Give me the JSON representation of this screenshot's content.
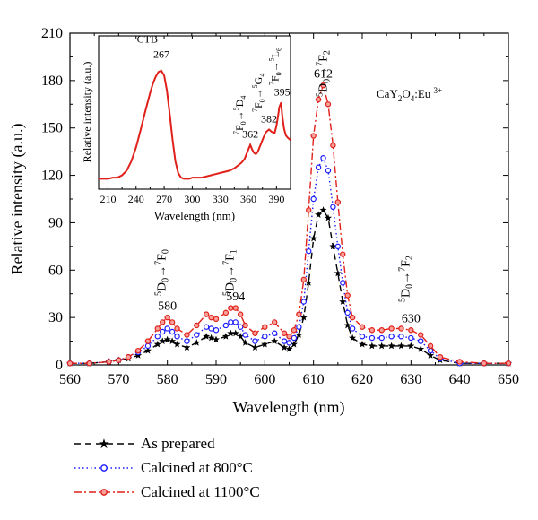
{
  "chart_data": [
    {
      "type": "line",
      "title": "",
      "xlabel": "Wavelength (nm)",
      "ylabel": "Relative intensity (a.u.)",
      "xlim": [
        560,
        650
      ],
      "ylim": [
        0,
        210
      ],
      "x_ticks": [
        560,
        570,
        580,
        590,
        600,
        610,
        620,
        630,
        640,
        650
      ],
      "y_ticks": [
        0,
        30,
        60,
        90,
        120,
        150,
        180,
        210
      ],
      "grid": false,
      "legend_position": "bottom",
      "compound_label": "CaY2O4:Eu3+",
      "series": [
        {
          "name": "As prepared",
          "color": "#000000",
          "marker": "star",
          "x": [
            560,
            564,
            568,
            570,
            572,
            574,
            576,
            578,
            579,
            580,
            581,
            582,
            584,
            586,
            588,
            589,
            590,
            592,
            593,
            594,
            595,
            596,
            598,
            600,
            602,
            604,
            605,
            606,
            607,
            608,
            609,
            610,
            611,
            612,
            613,
            614,
            615,
            616,
            617,
            618,
            620,
            622,
            624,
            626,
            628,
            630,
            632,
            634,
            636,
            640,
            645,
            650
          ],
          "values": [
            1,
            1,
            2,
            3,
            4,
            6,
            9,
            13,
            15,
            16,
            15,
            13,
            11,
            14,
            18,
            17,
            16,
            18,
            20,
            20,
            18,
            14,
            11,
            13,
            15,
            11,
            10,
            13,
            19,
            30,
            52,
            80,
            95,
            98,
            93,
            75,
            58,
            40,
            25,
            17,
            13,
            12,
            12,
            12,
            12,
            12,
            10,
            6,
            3,
            1,
            1,
            1
          ]
        },
        {
          "name": "Calcined at 800°C",
          "color": "#1a1aff",
          "marker": "circle",
          "x": [
            560,
            564,
            568,
            570,
            572,
            574,
            576,
            578,
            579,
            580,
            581,
            582,
            584,
            586,
            588,
            589,
            590,
            592,
            593,
            594,
            595,
            596,
            598,
            600,
            602,
            604,
            605,
            606,
            607,
            608,
            609,
            610,
            611,
            612,
            613,
            614,
            615,
            616,
            617,
            618,
            620,
            622,
            624,
            626,
            628,
            630,
            632,
            634,
            636,
            640,
            645,
            650
          ],
          "values": [
            1,
            1,
            2,
            3,
            5,
            8,
            12,
            18,
            21,
            23,
            21,
            18,
            15,
            19,
            24,
            23,
            22,
            25,
            27,
            27,
            24,
            19,
            15,
            18,
            20,
            15,
            14,
            17,
            24,
            40,
            72,
            105,
            125,
            131,
            123,
            100,
            75,
            52,
            33,
            23,
            18,
            17,
            17,
            18,
            18,
            17,
            15,
            9,
            4,
            1,
            1,
            1
          ]
        },
        {
          "name": "Calcined at 1100°C",
          "color": "#e0201a",
          "marker": "circle",
          "x": [
            560,
            564,
            568,
            570,
            572,
            574,
            576,
            578,
            579,
            580,
            581,
            582,
            584,
            586,
            588,
            589,
            590,
            592,
            593,
            594,
            595,
            596,
            598,
            600,
            602,
            604,
            605,
            606,
            607,
            608,
            609,
            610,
            611,
            612,
            613,
            614,
            615,
            616,
            617,
            618,
            620,
            622,
            624,
            626,
            628,
            630,
            632,
            634,
            636,
            640,
            645,
            650
          ],
          "values": [
            1,
            1,
            2,
            3,
            5,
            9,
            15,
            23,
            27,
            30,
            27,
            23,
            19,
            25,
            32,
            30,
            29,
            33,
            36,
            36,
            32,
            25,
            20,
            24,
            27,
            20,
            18,
            22,
            32,
            54,
            98,
            145,
            168,
            177,
            165,
            139,
            103,
            70,
            44,
            30,
            24,
            22,
            22,
            23,
            23,
            22,
            19,
            12,
            5,
            2,
            1,
            1
          ]
        }
      ],
      "annotations": [
        {
          "text": "580",
          "x": 580,
          "y": 35
        },
        {
          "text": "594",
          "x": 594,
          "y": 41
        },
        {
          "text": "612",
          "x": 612,
          "y": 182
        },
        {
          "text": "630",
          "x": 630,
          "y": 27
        },
        {
          "transition_sup1": "5",
          "transition_base1": "D",
          "transition_sub1": "0",
          "transition_sup2": "7",
          "transition_base2": "F",
          "transition_sub2": "0",
          "x": 580
        },
        {
          "transition_sup1": "5",
          "transition_base1": "D",
          "transition_sub1": "0",
          "transition_sup2": "7",
          "transition_base2": "F",
          "transition_sub2": "1",
          "x": 594
        },
        {
          "transition_sup1": "5",
          "transition_base1": "D",
          "transition_sub1": "0",
          "transition_sup2": "7",
          "transition_base2": "F",
          "transition_sub2": "2",
          "x": 612
        },
        {
          "transition_sup1": "5",
          "transition_base1": "D",
          "transition_sub1": "0",
          "transition_sup2": "7",
          "transition_base2": "F",
          "transition_sub2": "2",
          "x": 630
        }
      ]
    },
    {
      "type": "line",
      "title": "",
      "xlabel": "Wavelength (nm)",
      "ylabel": "Relative intensity (a.u.)",
      "xlim": [
        200,
        405
      ],
      "ylim": [
        0,
        1
      ],
      "x_ticks": [
        210,
        240,
        270,
        300,
        330,
        360,
        390
      ],
      "series": [
        {
          "color": "#e0201a",
          "x": [
            200,
            205,
            210,
            215,
            220,
            225,
            230,
            235,
            240,
            245,
            250,
            255,
            258,
            261,
            264,
            267,
            270,
            273,
            276,
            279,
            282,
            285,
            288,
            291,
            294,
            297,
            300,
            305,
            310,
            315,
            320,
            325,
            330,
            335,
            340,
            345,
            350,
            353,
            356,
            358,
            360,
            362,
            364,
            366,
            368,
            370,
            373,
            376,
            379,
            382,
            385,
            388,
            390,
            392,
            393,
            395,
            396,
            398,
            400,
            402,
            405
          ],
          "values": [
            0.05,
            0.05,
            0.05,
            0.06,
            0.06,
            0.08,
            0.12,
            0.2,
            0.32,
            0.47,
            0.63,
            0.78,
            0.86,
            0.92,
            0.96,
            0.97,
            0.93,
            0.8,
            0.6,
            0.38,
            0.2,
            0.1,
            0.06,
            0.05,
            0.05,
            0.05,
            0.06,
            0.06,
            0.06,
            0.07,
            0.08,
            0.09,
            0.1,
            0.11,
            0.12,
            0.14,
            0.17,
            0.19,
            0.22,
            0.26,
            0.3,
            0.34,
            0.3,
            0.27,
            0.26,
            0.28,
            0.34,
            0.4,
            0.45,
            0.47,
            0.45,
            0.44,
            0.5,
            0.6,
            0.66,
            0.7,
            0.6,
            0.48,
            0.42,
            0.4,
            0.38
          ]
        }
      ],
      "annotations": [
        {
          "text": "CTB",
          "x": 252,
          "y": 1.21
        },
        {
          "text": "267",
          "x": 267,
          "y": 1.08
        },
        {
          "text": "362",
          "x": 362,
          "y": 0.4
        },
        {
          "text": "382",
          "x": 382,
          "y": 0.53
        },
        {
          "text": "395",
          "x": 396,
          "y": 0.76
        },
        {
          "transition_sup1": "7",
          "transition_base1": "F",
          "transition_sub1": "0",
          "transition_sup2": "5",
          "transition_base2": "D",
          "transition_sub2": "4",
          "x": 360
        },
        {
          "transition_sup1": "7",
          "transition_base1": "F",
          "transition_sub1": "0",
          "transition_sup2": "5",
          "transition_base2": "G",
          "transition_sub2": "4",
          "x": 380
        },
        {
          "transition_sup1": "7",
          "transition_base1": "F",
          "transition_sub1": "0",
          "transition_sup2": "5",
          "transition_base2": "L",
          "transition_sub2": "6",
          "x": 398
        }
      ]
    }
  ]
}
